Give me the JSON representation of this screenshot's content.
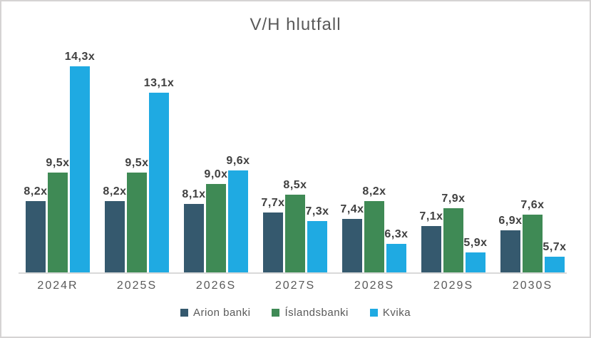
{
  "chart_data": {
    "type": "bar",
    "title": "V/H hlutfall",
    "categories": [
      "2024R",
      "2025S",
      "2026S",
      "2027S",
      "2028S",
      "2029S",
      "2030S"
    ],
    "series": [
      {
        "name": "Arion banki",
        "color": "#35596E",
        "values": [
          8.2,
          8.2,
          8.1,
          7.7,
          7.4,
          7.1,
          6.9
        ]
      },
      {
        "name": "Íslandsbanki",
        "color": "#3F8A55",
        "values": [
          9.5,
          9.5,
          9.0,
          8.5,
          8.2,
          7.9,
          7.6
        ]
      },
      {
        "name": "Kvika",
        "color": "#1FAAE2",
        "values": [
          14.3,
          13.1,
          9.6,
          7.3,
          6.3,
          5.9,
          5.7
        ]
      }
    ],
    "value_suffix": "x",
    "decimal_separator": ",",
    "ylim": [
      5,
      15
    ],
    "grid": false,
    "legend_position": "bottom",
    "xlabel": "",
    "ylabel": ""
  },
  "colors": {
    "title_text": "#595959",
    "axis_label_text": "#595959",
    "data_label_text": "#404040",
    "axis_line": "#D9D9D9",
    "frame_border": "#D5D3D3",
    "background": "#FFFFFF"
  }
}
